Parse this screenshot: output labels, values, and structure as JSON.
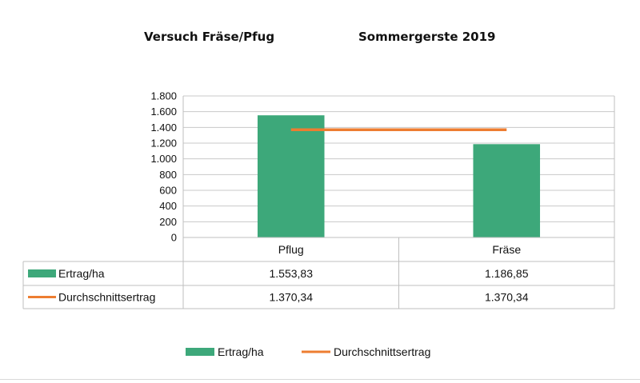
{
  "chart_data": {
    "type": "bar",
    "title": "Versuch Fräse/Pfug",
    "subtitle": "Sommergerste 2019",
    "categories": [
      "Pflug",
      "Fräse"
    ],
    "series": [
      {
        "name": "Ertrag/ha",
        "kind": "bar",
        "color": "#3da87a",
        "values": [
          1553.83,
          1186.85
        ],
        "value_labels": [
          "1.553,83",
          "1.186,85"
        ]
      },
      {
        "name": "Durchschnittsertrag",
        "kind": "line",
        "color": "#ed7d31",
        "values": [
          1370.34,
          1370.34
        ],
        "value_labels": [
          "1.370,34",
          "1.370,34"
        ]
      }
    ],
    "ylim": [
      0,
      1800
    ],
    "yticks": [
      0,
      200,
      400,
      600,
      800,
      1000,
      1200,
      1400,
      1600,
      1800
    ],
    "ytick_labels": [
      "0",
      "200",
      "400",
      "600",
      "800",
      "1.000",
      "1.200",
      "1.400",
      "1.600",
      "1.800"
    ],
    "grid": true,
    "data_table": true,
    "legend_position": "bottom"
  }
}
